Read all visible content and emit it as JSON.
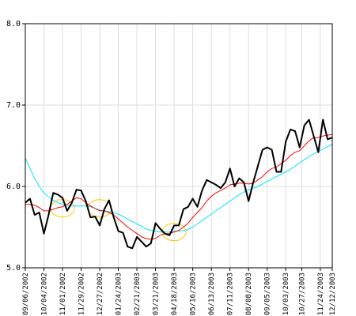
{
  "chart_data": {
    "type": "line",
    "ylim": [
      5.0,
      8.0
    ],
    "yticks": [
      "5.0",
      "6.0",
      "7.0",
      "8.0"
    ],
    "grid": true,
    "legend": "none",
    "x_tick_labels": [
      "09/06/2002",
      "10/04/2002",
      "11/01/2002",
      "11/29/2002",
      "12/27/2002",
      "01/24/2003",
      "02/21/2003",
      "03/21/2003",
      "04/18/2003",
      "05/16/2003",
      "06/13/2003",
      "07/11/2003",
      "08/08/2003",
      "09/05/2003",
      "10/03/2003",
      "10/27/2003",
      "11/24/2003",
      "12/12/2003"
    ],
    "x_tick_dates": [
      "2002-09-06",
      "2002-10-04",
      "2002-11-01",
      "2002-11-29",
      "2002-12-27",
      "2003-01-24",
      "2003-02-21",
      "2003-03-21",
      "2003-04-18",
      "2003-05-16",
      "2003-06-13",
      "2003-07-11",
      "2003-08-08",
      "2003-09-05",
      "2003-10-03",
      "2003-10-27",
      "2003-11-24",
      "2003-12-12"
    ],
    "series": [
      {
        "color": "#000000",
        "x": [
          "2002-09-06",
          "2002-09-13",
          "2002-09-20",
          "2002-09-27",
          "2002-10-04",
          "2002-10-11",
          "2002-10-18",
          "2002-10-25",
          "2002-11-01",
          "2002-11-08",
          "2002-11-15",
          "2002-11-22",
          "2002-11-29",
          "2002-12-06",
          "2002-12-13",
          "2002-12-20",
          "2002-12-27",
          "2003-01-03",
          "2003-01-10",
          "2003-01-17",
          "2003-01-24",
          "2003-01-31",
          "2003-02-07",
          "2003-02-14",
          "2003-02-21",
          "2003-02-28",
          "2003-03-07",
          "2003-03-14",
          "2003-03-21",
          "2003-03-28",
          "2003-04-04",
          "2003-04-11",
          "2003-04-18",
          "2003-04-25",
          "2003-05-02",
          "2003-05-09",
          "2003-05-16",
          "2003-05-23",
          "2003-05-30",
          "2003-06-06",
          "2003-06-13",
          "2003-06-20",
          "2003-06-27",
          "2003-07-04",
          "2003-07-11",
          "2003-07-18",
          "2003-07-25",
          "2003-08-01",
          "2003-08-08",
          "2003-08-15",
          "2003-08-22",
          "2003-08-29",
          "2003-09-05",
          "2003-09-12",
          "2003-09-19",
          "2003-09-26",
          "2003-10-03",
          "2003-10-10",
          "2003-10-17",
          "2003-10-24",
          "2003-10-31",
          "2003-11-07",
          "2003-11-14",
          "2003-11-21",
          "2003-11-28",
          "2003-12-05",
          "2003-12-12"
        ],
        "values": [
          5.8,
          5.85,
          5.65,
          5.68,
          5.42,
          5.65,
          5.92,
          5.9,
          5.86,
          5.7,
          5.8,
          5.96,
          5.95,
          5.82,
          5.62,
          5.63,
          5.52,
          5.72,
          5.83,
          5.62,
          5.45,
          5.43,
          5.26,
          5.24,
          5.38,
          5.32,
          5.26,
          5.3,
          5.55,
          5.48,
          5.42,
          5.4,
          5.52,
          5.52,
          5.72,
          5.75,
          5.85,
          5.75,
          5.95,
          6.08,
          6.05,
          6.02,
          5.98,
          6.05,
          6.22,
          6.0,
          6.1,
          6.05,
          5.82,
          6.05,
          6.25,
          6.45,
          6.48,
          6.45,
          6.18,
          6.18,
          6.55,
          6.7,
          6.68,
          6.48,
          6.75,
          6.82,
          6.62,
          6.42,
          6.82,
          6.58,
          6.6
        ]
      },
      {
        "color": "#ff0000",
        "x": [
          "2002-09-06",
          "2002-09-13",
          "2002-09-20",
          "2002-09-27",
          "2002-10-04",
          "2002-10-11",
          "2002-10-18",
          "2002-10-25",
          "2002-11-01",
          "2002-11-08",
          "2002-11-15",
          "2002-11-22",
          "2002-11-29",
          "2002-12-06",
          "2002-12-13",
          "2002-12-20",
          "2002-12-27",
          "2003-01-03",
          "2003-01-10",
          "2003-01-17",
          "2003-01-24",
          "2003-01-31",
          "2003-02-07",
          "2003-02-14",
          "2003-02-21",
          "2003-02-28",
          "2003-03-07",
          "2003-03-14",
          "2003-03-21",
          "2003-03-28",
          "2003-04-04",
          "2003-04-11",
          "2003-04-18",
          "2003-04-25",
          "2003-05-02",
          "2003-05-09",
          "2003-05-16",
          "2003-05-23",
          "2003-05-30",
          "2003-06-06",
          "2003-06-13",
          "2003-06-20",
          "2003-06-27",
          "2003-07-04",
          "2003-07-11",
          "2003-07-18",
          "2003-07-25",
          "2003-08-01",
          "2003-08-08",
          "2003-08-15",
          "2003-08-22",
          "2003-08-29",
          "2003-09-05",
          "2003-09-12",
          "2003-09-19",
          "2003-09-26",
          "2003-10-03",
          "2003-10-10",
          "2003-10-17",
          "2003-10-24",
          "2003-10-31",
          "2003-11-07",
          "2003-11-14",
          "2003-11-21",
          "2003-11-28",
          "2003-12-05",
          "2003-12-12"
        ],
        "values": [
          5.78,
          5.78,
          5.77,
          5.74,
          5.7,
          5.7,
          5.72,
          5.74,
          5.75,
          5.78,
          5.82,
          5.86,
          5.85,
          5.8,
          5.76,
          5.73,
          5.7,
          5.7,
          5.68,
          5.65,
          5.6,
          5.55,
          5.5,
          5.46,
          5.42,
          5.38,
          5.36,
          5.35,
          5.36,
          5.4,
          5.42,
          5.42,
          5.44,
          5.46,
          5.5,
          5.55,
          5.62,
          5.68,
          5.74,
          5.82,
          5.88,
          5.92,
          5.95,
          5.98,
          6.02,
          6.03,
          6.04,
          6.04,
          6.03,
          6.04,
          6.08,
          6.12,
          6.18,
          6.22,
          6.24,
          6.28,
          6.32,
          6.38,
          6.42,
          6.44,
          6.5,
          6.56,
          6.6,
          6.6,
          6.62,
          6.63,
          6.64
        ]
      },
      {
        "color": "#00e5ff",
        "x": [
          "2002-09-06",
          "2002-09-13",
          "2002-09-20",
          "2002-09-27",
          "2002-10-04",
          "2002-10-11",
          "2002-10-18",
          "2002-10-25",
          "2002-11-01",
          "2002-11-08",
          "2002-11-15",
          "2002-11-22",
          "2002-11-29",
          "2002-12-06",
          "2002-12-13",
          "2002-12-20",
          "2002-12-27",
          "2003-01-03",
          "2003-01-10",
          "2003-01-17",
          "2003-01-24",
          "2003-01-31",
          "2003-02-07",
          "2003-02-14",
          "2003-02-21",
          "2003-02-28",
          "2003-03-07",
          "2003-03-14",
          "2003-03-21",
          "2003-03-28",
          "2003-04-04",
          "2003-04-11",
          "2003-04-18",
          "2003-04-25",
          "2003-05-02",
          "2003-05-09",
          "2003-05-16",
          "2003-05-23",
          "2003-05-30",
          "2003-06-06",
          "2003-06-13",
          "2003-06-20",
          "2003-06-27",
          "2003-07-04",
          "2003-07-11",
          "2003-07-18",
          "2003-07-25",
          "2003-08-01",
          "2003-08-08",
          "2003-08-15",
          "2003-08-22",
          "2003-08-29",
          "2003-09-05",
          "2003-09-12",
          "2003-09-19",
          "2003-09-26",
          "2003-10-03",
          "2003-10-10",
          "2003-10-17",
          "2003-10-24",
          "2003-10-31",
          "2003-11-07",
          "2003-11-14",
          "2003-11-21",
          "2003-11-28",
          "2003-12-05",
          "2003-12-12"
        ],
        "values": [
          6.35,
          6.22,
          6.1,
          6.0,
          5.92,
          5.87,
          5.83,
          5.8,
          5.78,
          5.77,
          5.76,
          5.76,
          5.76,
          5.76,
          5.75,
          5.73,
          5.71,
          5.7,
          5.69,
          5.68,
          5.66,
          5.63,
          5.6,
          5.57,
          5.54,
          5.51,
          5.48,
          5.46,
          5.45,
          5.44,
          5.44,
          5.44,
          5.45,
          5.45,
          5.46,
          5.47,
          5.5,
          5.54,
          5.58,
          5.62,
          5.66,
          5.7,
          5.74,
          5.78,
          5.82,
          5.86,
          5.9,
          5.93,
          5.96,
          5.98,
          6.0,
          6.03,
          6.06,
          6.09,
          6.12,
          6.15,
          6.18,
          6.21,
          6.25,
          6.29,
          6.33,
          6.37,
          6.4,
          6.43,
          6.46,
          6.49,
          6.52
        ]
      }
    ],
    "highlight_circles": [
      {
        "x": "2002-11-01",
        "y": 5.73
      },
      {
        "x": "2002-12-27",
        "y": 5.73
      },
      {
        "x": "2003-04-18",
        "y": 5.44
      }
    ],
    "highlight_color": "#ffc800"
  }
}
